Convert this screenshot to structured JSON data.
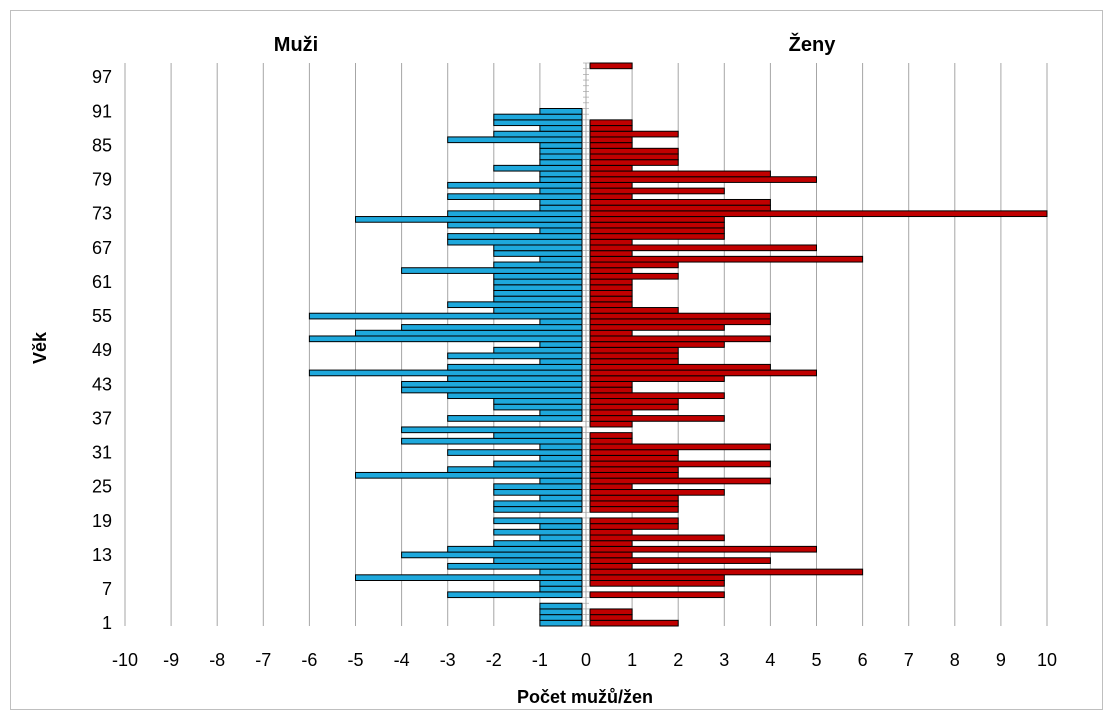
{
  "chart_data": {
    "type": "bar",
    "orientation": "horizontal-population-pyramid",
    "left_heading": "Muži",
    "right_heading": "Ženy",
    "xlabel": "Počet mužů/žen",
    "ylabel": "Věk",
    "xlim": [
      -10,
      10
    ],
    "xticks": [
      -10,
      -9,
      -8,
      -7,
      -6,
      -5,
      -4,
      -3,
      -2,
      -1,
      0,
      1,
      2,
      3,
      4,
      5,
      6,
      7,
      8,
      9,
      10
    ],
    "yticks": [
      "1",
      "7",
      "13",
      "19",
      "25",
      "31",
      "37",
      "43",
      "49",
      "55",
      "61",
      "67",
      "73",
      "79",
      "85",
      "91",
      "97"
    ],
    "ages": [
      1,
      2,
      3,
      4,
      5,
      6,
      7,
      8,
      9,
      10,
      11,
      12,
      13,
      14,
      15,
      16,
      17,
      18,
      19,
      20,
      21,
      22,
      23,
      24,
      25,
      26,
      27,
      28,
      29,
      30,
      31,
      32,
      33,
      34,
      35,
      36,
      37,
      38,
      39,
      40,
      41,
      42,
      43,
      44,
      45,
      46,
      47,
      48,
      49,
      50,
      51,
      52,
      53,
      54,
      55,
      56,
      57,
      58,
      59,
      60,
      61,
      62,
      63,
      64,
      65,
      66,
      67,
      68,
      69,
      70,
      71,
      72,
      73,
      74,
      75,
      76,
      77,
      78,
      79,
      80,
      81,
      82,
      83,
      84,
      85,
      86,
      87,
      88,
      89,
      90,
      91,
      92,
      93,
      94,
      95,
      96,
      97,
      98,
      99
    ],
    "grid": true,
    "colors": {
      "men": "#1ea8dc",
      "women": "#c00000"
    },
    "series": [
      {
        "name": "Muži",
        "values": [
          -1,
          -1,
          -1,
          -1,
          0,
          -3,
          -1,
          -1,
          -5,
          -1,
          -3,
          -2,
          -4,
          -3,
          -2,
          -1,
          -2,
          -1,
          -2,
          0,
          -2,
          -2,
          -1,
          -2,
          -2,
          -1,
          -5,
          -3,
          -2,
          -1,
          -3,
          -1,
          -4,
          -2,
          -4,
          0,
          -3,
          -1,
          -2,
          -2,
          -3,
          -4,
          -4,
          -3,
          -6,
          -3,
          -1,
          -3,
          -2,
          -1,
          -6,
          -5,
          -4,
          -1,
          -6,
          -2,
          -3,
          -2,
          -2,
          -2,
          -2,
          -2,
          -4,
          -2,
          -1,
          -2,
          -2,
          -3,
          -3,
          -1,
          -3,
          -5,
          -3,
          -1,
          -1,
          -3,
          -1,
          -3,
          -1,
          -1,
          -2,
          -1,
          -1,
          -1,
          -1,
          -3,
          -2,
          -1,
          -2,
          -2,
          -1,
          0,
          0,
          0,
          0,
          0,
          0,
          0,
          0
        ]
      },
      {
        "name": "Ženy",
        "values": [
          2,
          1,
          1,
          0,
          0,
          3,
          0,
          3,
          3,
          6,
          1,
          4,
          1,
          5,
          1,
          3,
          1,
          2,
          2,
          0,
          2,
          2,
          2,
          3,
          1,
          4,
          2,
          2,
          4,
          2,
          2,
          4,
          1,
          1,
          0,
          1,
          3,
          1,
          2,
          2,
          3,
          1,
          1,
          3,
          5,
          4,
          2,
          2,
          2,
          3,
          4,
          1,
          3,
          4,
          4,
          2,
          1,
          1,
          1,
          1,
          1,
          2,
          1,
          2,
          6,
          1,
          5,
          1,
          3,
          3,
          3,
          3,
          10,
          4,
          4,
          1,
          3,
          1,
          5,
          4,
          1,
          2,
          2,
          2,
          1,
          1,
          2,
          1,
          1,
          0,
          0,
          0,
          0,
          0,
          0,
          0,
          0,
          0,
          1
        ]
      }
    ]
  }
}
